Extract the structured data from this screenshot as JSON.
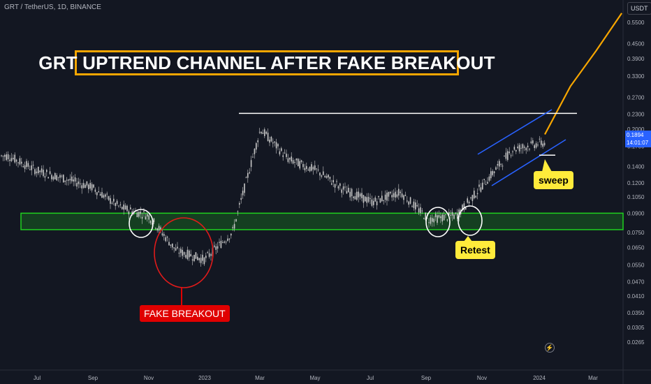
{
  "header": {
    "symbol": "GRT / TetherUS, 1D, BINANCE"
  },
  "annotations": {
    "title": "GRT UPTREND CHANNEL AFTER FAKE BREAKOUT",
    "fake_breakout": "FAKE BREAKOUT",
    "retest": "Retest",
    "sweep": "sweep"
  },
  "price_axis": {
    "currency": "USDT",
    "current_price": "0.1894",
    "countdown": "14:01:07",
    "ticks": [
      "0.5500",
      "0.4500",
      "0.3900",
      "0.3300",
      "0.2700",
      "0.2300",
      "0.2000",
      "0.1700",
      "0.1400",
      "0.1200",
      "0.1050",
      "0.0900",
      "0.0750",
      "0.0650",
      "0.0550",
      "0.0470",
      "0.0410",
      "0.0350",
      "0.0305",
      "0.0265"
    ]
  },
  "time_axis": {
    "ticks": [
      "Jul",
      "Sep",
      "Nov",
      "2023",
      "Mar",
      "May",
      "Jul",
      "Sep",
      "Nov",
      "2024",
      "Mar"
    ]
  },
  "colors": {
    "background": "#131722",
    "candles": "#c8c8c8",
    "projection": "#f7a600",
    "support_zone": "#1fd11f",
    "channel": "#2962ff",
    "circles": "#ffffff",
    "fake_circle": "#e01b1b",
    "title_border": "#f7a600"
  },
  "chart_data": {
    "type": "line",
    "y_scale": "log",
    "ylim": [
      0.0245,
      0.62
    ],
    "x": [
      "2022-06",
      "2022-07",
      "2022-08",
      "2022-09",
      "2022-10",
      "2022-11",
      "2022-12",
      "2023-01",
      "2023-02",
      "2023-03",
      "2023-04",
      "2023-05",
      "2023-06",
      "2023-07",
      "2023-08",
      "2023-09",
      "2023-10",
      "2023-11",
      "2023-12",
      "2024-01",
      "2024-02",
      "2024-03",
      "2024-04"
    ],
    "series": [
      {
        "values": [
          0.155,
          0.135,
          0.125,
          0.115,
          0.095,
          0.088,
          0.063,
          0.058,
          0.075,
          0.2,
          0.15,
          0.135,
          0.112,
          0.1,
          0.11,
          0.085,
          0.088,
          0.12,
          0.165,
          0.175,
          null,
          null,
          null
        ]
      },
      {
        "values": [
          null,
          null,
          null,
          null,
          null,
          null,
          null,
          null,
          null,
          null,
          null,
          null,
          null,
          null,
          null,
          null,
          null,
          null,
          null,
          0.19,
          0.3,
          0.42,
          0.6
        ]
      }
    ],
    "support_zone": [
      0.077,
      0.09
    ],
    "resistance_line": 0.232,
    "sweep_level": 0.156
  }
}
